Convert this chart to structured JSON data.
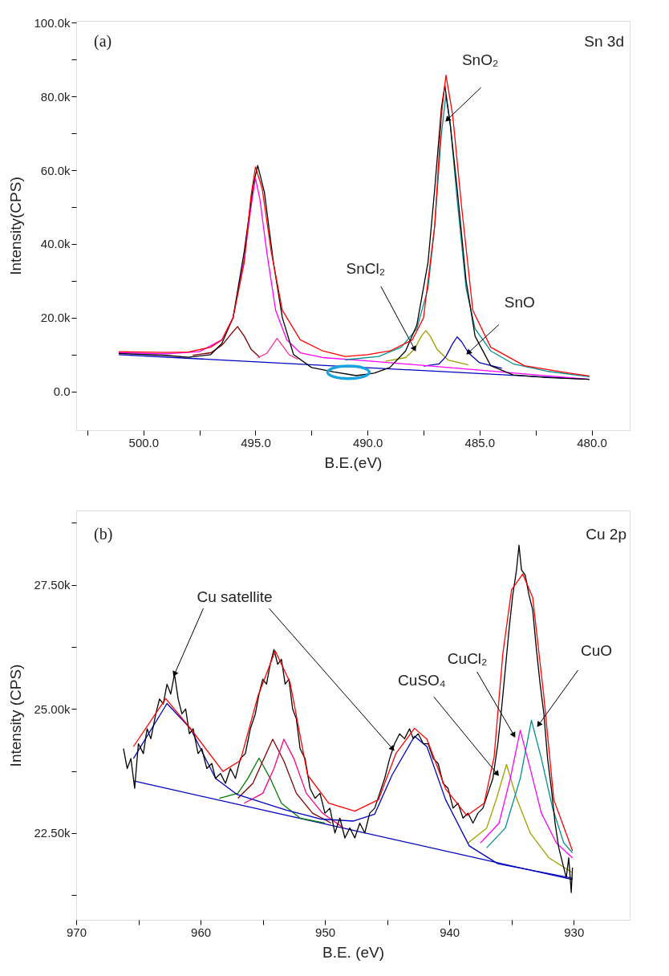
{
  "chart_data": [
    {
      "type": "line",
      "xlabel": "B.E.(eV)",
      "ylabel": "Intensity(CPS)",
      "xlim": [
        503.0,
        478.3
      ],
      "ylim": [
        -10500,
        100500
      ],
      "xticks": [
        {
          "value": 502.5,
          "label": null
        },
        {
          "value": 500,
          "label": "500.0"
        },
        {
          "value": 497.5,
          "label": null
        },
        {
          "value": 495,
          "label": "495.0"
        },
        {
          "value": 492.5,
          "label": null
        },
        {
          "value": 490,
          "label": "490.0"
        },
        {
          "value": 487.5,
          "label": null
        },
        {
          "value": 485,
          "label": "485.0"
        },
        {
          "value": 482.5,
          "label": null
        },
        {
          "value": 480,
          "label": "480.0"
        }
      ],
      "yticks": [
        {
          "value": 0,
          "label": "0.0"
        },
        {
          "value": 10000,
          "label": null
        },
        {
          "value": 20000,
          "label": "20.0k"
        },
        {
          "value": 30000,
          "label": null
        },
        {
          "value": 40000,
          "label": "40.0k"
        },
        {
          "value": 50000,
          "label": null
        },
        {
          "value": 60000,
          "label": "60.0k"
        },
        {
          "value": 70000,
          "label": null
        },
        {
          "value": 80000,
          "label": "80.0k"
        },
        {
          "value": 90000,
          "label": null
        },
        {
          "value": 100000,
          "label": "100.0k"
        }
      ],
      "grid": false,
      "marker": "none",
      "line_style": "solid",
      "annotations": [
        "(a)",
        "Sn 3d",
        {
          "text": "SnO₂",
          "x": 486.44,
          "y": 73700
        },
        {
          "text": "SnCl₂",
          "x": 487.9,
          "y": 11500
        },
        {
          "text": "SnO",
          "x": 485.5,
          "y": 10500
        }
      ],
      "series": [
        {
          "color": "#0000c0",
          "x": [
            501.1,
            480.1
          ],
          "values": [
            10000,
            3300
          ]
        },
        {
          "color": "#800000",
          "x": [
            497.8,
            497,
            496.5,
            496.1,
            495.8,
            495.5,
            495.2,
            494.8
          ],
          "values": [
            9800,
            10500,
            12500,
            15500,
            17600,
            15000,
            11500,
            9200
          ]
        },
        {
          "color": "#ff3399",
          "x": [
            494.9,
            494.5,
            494.25,
            494.04,
            493.8,
            493.5,
            493.1
          ],
          "values": [
            9200,
            10300,
            12500,
            14400,
            12500,
            10000,
            8700
          ]
        },
        {
          "color": "#a0a000",
          "x": [
            489.2,
            488.3,
            487.9,
            487.6,
            487.4,
            487.2,
            486.9,
            486.4,
            485.5
          ],
          "values": [
            8200,
            9200,
            11500,
            15000,
            16500,
            15000,
            11500,
            8500,
            7200
          ]
        },
        {
          "color": "#0000c0",
          "x": [
            487.5,
            486.8,
            486.5,
            486.2,
            486.0,
            485.8,
            485.5,
            485,
            484
          ],
          "values": [
            6900,
            7500,
            9500,
            13000,
            14800,
            13500,
            10500,
            7800,
            6300
          ]
        },
        {
          "color": "#ff00ff",
          "x": [
            501.1,
            499,
            497.5,
            496.5,
            496,
            495.5,
            495.2,
            495.0,
            494.8,
            494.5,
            494.1,
            493.6,
            493,
            492,
            490,
            485,
            480.1
          ],
          "values": [
            10500,
            10200,
            10800,
            14000,
            20000,
            36000,
            50000,
            57800,
            52000,
            38000,
            22000,
            14000,
            10500,
            9200,
            8300,
            5800,
            3300
          ]
        },
        {
          "color": "#009090",
          "x": [
            491,
            489.5,
            488.5,
            487.8,
            487.3,
            487,
            486.7,
            486.5,
            486.3,
            486,
            485.6,
            485.2,
            484.5,
            483.5,
            482,
            480.1
          ],
          "values": [
            8600,
            9500,
            12000,
            17000,
            28000,
            45000,
            70000,
            80400,
            72000,
            52000,
            28000,
            17000,
            11000,
            7500,
            5500,
            4000
          ]
        },
        {
          "color": "#000000",
          "x": [
            501.1,
            499,
            498,
            497,
            496.5,
            496,
            495.5,
            495.1,
            494.9,
            494.6,
            494.2,
            493.8,
            493.3,
            492.5,
            491.5,
            490.5,
            489.7,
            489,
            488.3,
            487.8,
            487.3,
            487,
            486.7,
            486.55,
            486.3,
            486,
            485.6,
            485.2,
            484.5,
            483.5,
            482,
            480.1
          ],
          "values": [
            10300,
            9800,
            9300,
            10000,
            13000,
            20000,
            38000,
            56000,
            61300,
            54000,
            35000,
            20000,
            10000,
            6500,
            5300,
            4300,
            5000,
            6500,
            11000,
            18000,
            35000,
            55000,
            77000,
            83000,
            72000,
            55000,
            30000,
            15000,
            7000,
            4500,
            3800,
            3300
          ]
        },
        {
          "color": "#ff0000",
          "x": [
            501.1,
            499,
            498,
            497,
            496.5,
            496,
            495.5,
            495.2,
            495.0,
            494.7,
            494.3,
            493.8,
            493,
            492,
            491,
            490,
            489,
            488,
            487.5,
            487,
            486.7,
            486.5,
            486.2,
            485.8,
            485.3,
            484.5,
            483,
            481,
            480.1
          ],
          "values": [
            10800,
            10600,
            10700,
            12000,
            14000,
            20000,
            35000,
            53000,
            60900,
            55000,
            38000,
            22000,
            14000,
            11000,
            9500,
            10000,
            11000,
            14000,
            20000,
            45000,
            75000,
            85800,
            75000,
            50000,
            22000,
            12000,
            7000,
            5000,
            4200
          ]
        }
      ]
    },
    {
      "type": "line",
      "xlabel": "B.E. (eV)",
      "ylabel": "Intensity (CPS)",
      "xlim": [
        970,
        925.5
      ],
      "ylim": [
        20750,
        29000
      ],
      "xticks": [
        970,
        {
          "value": 965,
          "label": null
        },
        960,
        {
          "value": 955,
          "label": null
        },
        950,
        {
          "value": 945,
          "label": null
        },
        940,
        {
          "value": 935,
          "label": null
        },
        930
      ],
      "yticks": [
        {
          "value": 21250,
          "label": null
        },
        {
          "value": 22500,
          "label": "22.50k"
        },
        {
          "value": 23750,
          "label": null
        },
        {
          "value": 25000,
          "label": "25.00k"
        },
        {
          "value": 26250,
          "label": null
        },
        {
          "value": 27500,
          "label": "27.50k"
        },
        {
          "value": 28750,
          "label": null
        }
      ],
      "grid": false,
      "marker": "none",
      "line_style": "solid",
      "annotations": [
        "(b)",
        "Cu 2p",
        {
          "text": "Cu satellite",
          "x": 962.1,
          "y": 25700
        },
        {
          "text": "CuSO₄",
          "x": 936.15,
          "y": 23690
        },
        {
          "text": "CuCl₂",
          "x": 934.81,
          "y": 24470
        },
        {
          "text": "CuO",
          "x": 932.82,
          "y": 24680
        }
      ],
      "series": [
        {
          "color": "#0000c0",
          "x": [
            965.4,
            930.1
          ],
          "values": [
            23550,
            21560
          ]
        },
        {
          "color": "#008000",
          "x": [
            958.5,
            957,
            956.2,
            955.3,
            954.4,
            953.5,
            952,
            950
          ],
          "values": [
            23200,
            23300,
            23600,
            24010,
            23600,
            23100,
            22800,
            22700
          ]
        },
        {
          "color": "#800000",
          "x": [
            957,
            955.8,
            955,
            954.2,
            953.3,
            952.3,
            951,
            949.5
          ],
          "values": [
            23200,
            23500,
            23950,
            24390,
            23950,
            23300,
            22900,
            22700
          ]
        },
        {
          "color": "#ff0080",
          "x": [
            956.5,
            955,
            954.1,
            953.3,
            952.5,
            951.5,
            950.2,
            948.5
          ],
          "values": [
            23100,
            23300,
            23800,
            24390,
            24000,
            23300,
            22900,
            22600
          ]
        },
        {
          "color": "#a0a000",
          "x": [
            938.5,
            937,
            936.2,
            935.4,
            934.6,
            933.5,
            932,
            930.1
          ],
          "values": [
            22300,
            22600,
            23200,
            23880,
            23200,
            22500,
            22000,
            21700
          ]
        },
        {
          "color": "#ff00ff",
          "x": [
            937.5,
            936,
            935.1,
            934.3,
            933.5,
            932.6,
            931.4,
            930.1
          ],
          "values": [
            22300,
            22700,
            23600,
            24570,
            23800,
            22900,
            22300,
            22000
          ]
        },
        {
          "color": "#009090",
          "x": [
            937,
            935.5,
            934.3,
            933.4,
            932.6,
            931.7,
            930.8,
            930.1
          ],
          "values": [
            22200,
            22600,
            23600,
            24770,
            24000,
            23000,
            22300,
            22100
          ]
        },
        {
          "color": "#0000c0",
          "x": [
            965.4,
            962.7,
            960.8,
            958.8,
            957.1,
            953.1,
            950.3,
            947.7,
            946.0,
            944.6,
            942.8,
            941.8,
            940.3,
            938.4,
            936.1,
            930.1
          ],
          "values": [
            24000,
            25110,
            24600,
            23600,
            23280,
            22960,
            22780,
            22740,
            22880,
            23670,
            24450,
            24240,
            23170,
            22240,
            21880,
            21590
          ]
        },
        {
          "color": "#000000",
          "x": [
            966.2,
            965.9,
            965.6,
            965.3,
            965.0,
            964.6,
            964.3,
            964.0,
            963.6,
            963.3,
            963.0,
            962.7,
            962.4,
            962.1,
            961.8,
            961.5,
            961.2,
            960.9,
            960.6,
            960.2,
            959.9,
            959.5,
            959.1,
            958.8,
            958.4,
            958.0,
            957.6,
            957.2,
            956.8,
            956.4,
            956.0,
            955.6,
            955.3,
            955.0,
            954.7,
            954.4,
            954.1,
            953.8,
            953.5,
            953.2,
            952.9,
            952.6,
            952.3,
            952.0,
            951.6,
            951.2,
            950.8,
            950.4,
            950.0,
            949.6,
            949.2,
            948.8,
            948.4,
            948.0,
            947.6,
            947.2,
            946.8,
            946.4,
            946.0,
            945.6,
            945.2,
            944.8,
            944.4,
            944.0,
            943.6,
            943.2,
            942.9,
            942.5,
            942.1,
            941.7,
            941.3,
            940.9,
            940.5,
            940.1,
            939.7,
            939.3,
            938.9,
            938.5,
            938.1,
            937.7,
            937.3,
            936.9,
            936.5,
            936.1,
            935.8,
            935.5,
            935.2,
            934.9,
            934.6,
            934.4,
            934.2,
            933.9,
            933.6,
            933.3,
            933.0,
            932.7,
            932.4,
            932.1,
            931.8,
            931.5,
            931.2,
            930.9,
            930.6,
            930.4,
            930.2,
            930.1
          ],
          "values": [
            24200,
            23800,
            24000,
            23400,
            24300,
            24100,
            24600,
            24400,
            24900,
            25200,
            25100,
            25500,
            25300,
            25700,
            25200,
            24900,
            25000,
            24500,
            24600,
            24100,
            24200,
            23800,
            23900,
            23600,
            23700,
            23500,
            23800,
            23600,
            24000,
            24100,
            24600,
            24900,
            25300,
            25600,
            25500,
            25900,
            26200,
            25900,
            26000,
            25500,
            25600,
            25000,
            24800,
            24200,
            24000,
            23400,
            23200,
            23300,
            22900,
            23000,
            22500,
            22800,
            22400,
            22600,
            22400,
            22700,
            22500,
            22900,
            23000,
            23300,
            23600,
            24000,
            24300,
            24500,
            24400,
            24600,
            24400,
            24500,
            24300,
            24300,
            24000,
            23900,
            23500,
            23400,
            23000,
            23100,
            22800,
            22900,
            22700,
            22900,
            23000,
            23300,
            23600,
            24300,
            25000,
            25800,
            26600,
            27300,
            27800,
            28300,
            27800,
            27700,
            27300,
            27000,
            26200,
            25500,
            24900,
            24000,
            23400,
            22700,
            22200,
            21900,
            21600,
            22000,
            21300,
            21800
          ]
        },
        {
          "color": "#ff0000",
          "x": [
            965.4,
            962.8,
            960.8,
            958.2,
            956.8,
            955.4,
            954.0,
            952.8,
            951.4,
            949.7,
            947.6,
            945.7,
            944.3,
            942.8,
            941.8,
            940.3,
            938.6,
            937.2,
            936.4,
            935.7,
            935.0,
            934.1,
            933.3,
            932.4,
            931.6,
            930.1
          ],
          "values": [
            24240,
            25210,
            24600,
            23740,
            23960,
            25250,
            26170,
            25530,
            23670,
            23100,
            22940,
            23170,
            24100,
            24610,
            24390,
            23390,
            22850,
            23100,
            24030,
            26110,
            27400,
            27720,
            27250,
            25250,
            23170,
            22140
          ]
        }
      ]
    }
  ]
}
